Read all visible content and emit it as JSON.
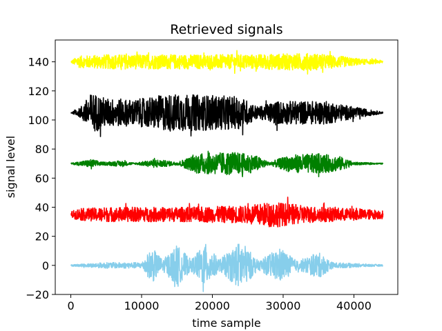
{
  "chart_data": {
    "type": "line",
    "title": "Retrieved signals",
    "xlabel": "time sample",
    "ylabel": "signal level",
    "xlim": [
      -2200,
      46200
    ],
    "ylim": [
      -20,
      155
    ],
    "xticks": [
      0,
      10000,
      20000,
      30000,
      40000
    ],
    "xtick_labels": [
      "0",
      "10000",
      "20000",
      "30000",
      "40000"
    ],
    "yticks": [
      -20,
      0,
      20,
      40,
      60,
      80,
      100,
      120,
      140
    ],
    "ytick_labels": [
      "−20",
      "0",
      "20",
      "40",
      "60",
      "80",
      "100",
      "120",
      "140"
    ],
    "grid": false,
    "legend": "none",
    "series": [
      {
        "color": "#ffff00",
        "offset": 140,
        "x_range": [
          0,
          44100
        ],
        "amplitude_envelope": [
          {
            "x": 0,
            "amp": 0.5
          },
          {
            "x": 1000,
            "amp": 4
          },
          {
            "x": 5000,
            "amp": 5
          },
          {
            "x": 15000,
            "amp": 5
          },
          {
            "x": 25000,
            "amp": 5
          },
          {
            "x": 34000,
            "amp": 6
          },
          {
            "x": 38000,
            "amp": 4
          },
          {
            "x": 41000,
            "amp": 2
          },
          {
            "x": 44100,
            "amp": 1
          }
        ],
        "approx_max": 150,
        "approx_min": 131
      },
      {
        "color": "#000000",
        "offset": 105,
        "x_range": [
          0,
          44100
        ],
        "amplitude_envelope": [
          {
            "x": 0,
            "amp": 0.3
          },
          {
            "x": 1000,
            "amp": 2
          },
          {
            "x": 3000,
            "amp": 14
          },
          {
            "x": 5000,
            "amp": 10
          },
          {
            "x": 9000,
            "amp": 9
          },
          {
            "x": 14000,
            "amp": 13
          },
          {
            "x": 20000,
            "amp": 12
          },
          {
            "x": 24000,
            "amp": 11
          },
          {
            "x": 26500,
            "amp": 4
          },
          {
            "x": 29000,
            "amp": 8
          },
          {
            "x": 36000,
            "amp": 8
          },
          {
            "x": 40000,
            "amp": 4
          },
          {
            "x": 44100,
            "amp": 0.5
          }
        ],
        "approx_max": 133,
        "approx_min": 77
      },
      {
        "color": "#008000",
        "offset": 70,
        "x_range": [
          0,
          44100
        ],
        "amplitude_envelope": [
          {
            "x": 0,
            "amp": 0.3
          },
          {
            "x": 3000,
            "amp": 3
          },
          {
            "x": 4500,
            "amp": 1
          },
          {
            "x": 7000,
            "amp": 2
          },
          {
            "x": 9000,
            "amp": 0.5
          },
          {
            "x": 12000,
            "amp": 3
          },
          {
            "x": 15000,
            "amp": 1
          },
          {
            "x": 18000,
            "amp": 7
          },
          {
            "x": 23000,
            "amp": 8
          },
          {
            "x": 26000,
            "amp": 6
          },
          {
            "x": 28000,
            "amp": 1
          },
          {
            "x": 31000,
            "amp": 6
          },
          {
            "x": 35000,
            "amp": 7
          },
          {
            "x": 38000,
            "amp": 5
          },
          {
            "x": 40000,
            "amp": 1
          },
          {
            "x": 44100,
            "amp": 0.3
          }
        ],
        "approx_max": 80,
        "approx_min": 61
      },
      {
        "color": "#ff0000",
        "offset": 35,
        "x_range": [
          0,
          44100
        ],
        "amplitude_envelope": [
          {
            "x": 0,
            "amp": 2
          },
          {
            "x": 1000,
            "amp": 4
          },
          {
            "x": 5000,
            "amp": 5
          },
          {
            "x": 15000,
            "amp": 5
          },
          {
            "x": 25000,
            "amp": 6
          },
          {
            "x": 28500,
            "amp": 9
          },
          {
            "x": 33000,
            "amp": 6
          },
          {
            "x": 40000,
            "amp": 4
          },
          {
            "x": 44100,
            "amp": 3
          }
        ],
        "approx_max": 52,
        "approx_min": 18
      },
      {
        "color": "#87ceeb",
        "offset": 0,
        "x_range": [
          0,
          44100
        ],
        "amplitude_envelope": [
          {
            "x": 0,
            "amp": 0.5
          },
          {
            "x": 5000,
            "amp": 2
          },
          {
            "x": 10000,
            "amp": 2
          },
          {
            "x": 11500,
            "amp": 12
          },
          {
            "x": 13000,
            "amp": 4
          },
          {
            "x": 15000,
            "amp": 14
          },
          {
            "x": 17000,
            "amp": 4
          },
          {
            "x": 19000,
            "amp": 15
          },
          {
            "x": 21000,
            "amp": 4
          },
          {
            "x": 24000,
            "amp": 17
          },
          {
            "x": 26500,
            "amp": 3
          },
          {
            "x": 29500,
            "amp": 12
          },
          {
            "x": 32000,
            "amp": 3
          },
          {
            "x": 35000,
            "amp": 9
          },
          {
            "x": 37000,
            "amp": 2
          },
          {
            "x": 44100,
            "amp": 0.5
          }
        ],
        "approx_max": 16,
        "approx_min": -18
      }
    ]
  }
}
